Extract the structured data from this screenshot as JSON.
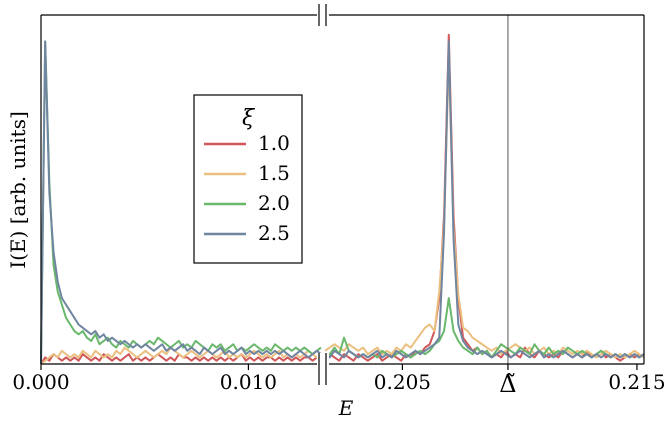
{
  "chart_data": {
    "type": "line",
    "xlabel": "E",
    "ylabel": "I(E) [arb. units]",
    "broken_x_axis": true,
    "panels": [
      {
        "xlim": [
          0.0,
          0.0135
        ],
        "ticks": [
          0.0,
          0.01
        ],
        "tick_labels": [
          "0.000",
          "0.010"
        ]
      },
      {
        "xlim": [
          0.2017,
          0.2153
        ],
        "ticks": [
          0.205,
          0.215
        ],
        "tick_labels": [
          "0.205",
          "0.215"
        ],
        "special_tick": {
          "value": 0.2095,
          "label": "Δ̃"
        }
      }
    ],
    "ylim": [
      0,
      1.06
    ],
    "grid": false,
    "legend": {
      "title": "ξ",
      "position": "upper-middle-left"
    },
    "series": [
      {
        "name": "1.0",
        "color": "#d0585a",
        "left": [
          0.0,
          0.02,
          0.01,
          0.03,
          0.02,
          0.01,
          0.02,
          0.01,
          0.02,
          0.01,
          0.03,
          0.02,
          0.01,
          0.02,
          0.01,
          0.03,
          0.02,
          0.01,
          0.02,
          0.01,
          0.02,
          0.03,
          0.01,
          0.02,
          0.01,
          0.02,
          0.01,
          0.02,
          0.03,
          0.02,
          0.01,
          0.02,
          0.01,
          0.03,
          0.02,
          0.02,
          0.01,
          0.02,
          0.01,
          0.02,
          0.01,
          0.02,
          0.01,
          0.02,
          0.01,
          0.02,
          0.01,
          0.02,
          0.03,
          0.01,
          0.02,
          0.01,
          0.02,
          0.01,
          0.02,
          0.02,
          0.01,
          0.02,
          0.01,
          0.02,
          0.01,
          0.02,
          0.01,
          0.02,
          0.02,
          0.01,
          0.02,
          0.01
        ],
        "right": [
          0.02,
          0.03,
          0.02,
          0.01,
          0.03,
          0.02,
          0.01,
          0.03,
          0.02,
          0.01,
          0.02,
          0.03,
          0.01,
          0.02,
          0.03,
          0.02,
          0.01,
          0.03,
          0.02,
          0.04,
          0.03,
          0.05,
          0.06,
          0.1,
          0.2,
          0.45,
          1.0,
          0.45,
          0.2,
          0.08,
          0.06,
          0.04,
          0.05,
          0.03,
          0.04,
          0.02,
          0.03,
          0.02,
          0.04,
          0.02,
          0.03,
          0.02,
          0.05,
          0.03,
          0.02,
          0.04,
          0.03,
          0.02,
          0.03,
          0.02,
          0.04,
          0.03,
          0.02,
          0.03,
          0.02,
          0.04,
          0.02,
          0.03,
          0.04,
          0.02,
          0.03,
          0.02,
          0.01,
          0.02,
          0.03,
          0.02,
          0.03,
          0.02
        ]
      },
      {
        "name": "1.5",
        "color": "#ebbf80",
        "left": [
          0.0,
          0.01,
          0.02,
          0.03,
          0.02,
          0.04,
          0.03,
          0.02,
          0.03,
          0.02,
          0.04,
          0.03,
          0.02,
          0.04,
          0.03,
          0.02,
          0.03,
          0.02,
          0.04,
          0.03,
          0.05,
          0.04,
          0.03,
          0.02,
          0.03,
          0.04,
          0.03,
          0.02,
          0.03,
          0.04,
          0.03,
          0.05,
          0.04,
          0.03,
          0.02,
          0.03,
          0.04,
          0.03,
          0.02,
          0.03,
          0.04,
          0.03,
          0.02,
          0.03,
          0.04,
          0.02,
          0.03,
          0.02,
          0.03,
          0.02,
          0.03,
          0.04,
          0.03,
          0.02,
          0.03,
          0.02,
          0.03,
          0.04,
          0.02,
          0.03,
          0.02,
          0.03,
          0.02,
          0.03,
          0.04,
          0.03,
          0.02,
          0.03
        ],
        "right": [
          0.04,
          0.05,
          0.06,
          0.05,
          0.04,
          0.06,
          0.05,
          0.04,
          0.05,
          0.03,
          0.04,
          0.05,
          0.03,
          0.04,
          0.03,
          0.05,
          0.04,
          0.06,
          0.05,
          0.07,
          0.09,
          0.11,
          0.12,
          0.1,
          0.22,
          0.42,
          0.93,
          0.41,
          0.21,
          0.11,
          0.1,
          0.08,
          0.07,
          0.06,
          0.05,
          0.04,
          0.05,
          0.03,
          0.04,
          0.05,
          0.06,
          0.05,
          0.04,
          0.05,
          0.03,
          0.04,
          0.05,
          0.03,
          0.04,
          0.03,
          0.05,
          0.04,
          0.03,
          0.04,
          0.03,
          0.04,
          0.03,
          0.02,
          0.03,
          0.04,
          0.03,
          0.02,
          0.03,
          0.02,
          0.03,
          0.04,
          0.03,
          0.02
        ]
      },
      {
        "name": "2.0",
        "color": "#6ab86c",
        "left": [
          0.0,
          0.98,
          0.55,
          0.3,
          0.22,
          0.18,
          0.14,
          0.12,
          0.1,
          0.09,
          0.1,
          0.08,
          0.07,
          0.09,
          0.06,
          0.07,
          0.08,
          0.06,
          0.05,
          0.07,
          0.06,
          0.05,
          0.07,
          0.06,
          0.05,
          0.06,
          0.07,
          0.06,
          0.08,
          0.07,
          0.06,
          0.05,
          0.06,
          0.07,
          0.05,
          0.06,
          0.05,
          0.07,
          0.06,
          0.05,
          0.04,
          0.06,
          0.05,
          0.06,
          0.04,
          0.05,
          0.06,
          0.04,
          0.05,
          0.04,
          0.05,
          0.06,
          0.05,
          0.04,
          0.05,
          0.04,
          0.06,
          0.05,
          0.04,
          0.05,
          0.04,
          0.05,
          0.04,
          0.05,
          0.04,
          0.03,
          0.04,
          0.05
        ],
        "right": [
          0.02,
          0.03,
          0.05,
          0.03,
          0.08,
          0.04,
          0.03,
          0.02,
          0.03,
          0.02,
          0.03,
          0.02,
          0.04,
          0.03,
          0.02,
          0.03,
          0.04,
          0.03,
          0.02,
          0.03,
          0.04,
          0.03,
          0.04,
          0.06,
          0.07,
          0.1,
          0.2,
          0.1,
          0.07,
          0.05,
          0.04,
          0.03,
          0.05,
          0.03,
          0.04,
          0.02,
          0.04,
          0.06,
          0.05,
          0.04,
          0.03,
          0.05,
          0.04,
          0.03,
          0.06,
          0.04,
          0.03,
          0.05,
          0.03,
          0.04,
          0.03,
          0.05,
          0.04,
          0.03,
          0.04,
          0.03,
          0.02,
          0.03,
          0.04,
          0.03,
          0.02,
          0.03,
          0.02,
          0.03,
          0.02,
          0.03,
          0.02,
          0.03
        ]
      },
      {
        "name": "2.5",
        "color": "#6f85a0",
        "left": [
          0.0,
          0.98,
          0.52,
          0.34,
          0.25,
          0.2,
          0.18,
          0.16,
          0.14,
          0.12,
          0.11,
          0.1,
          0.09,
          0.1,
          0.08,
          0.09,
          0.07,
          0.08,
          0.07,
          0.06,
          0.07,
          0.06,
          0.05,
          0.06,
          0.05,
          0.06,
          0.05,
          0.04,
          0.05,
          0.06,
          0.04,
          0.05,
          0.04,
          0.05,
          0.06,
          0.04,
          0.05,
          0.04,
          0.03,
          0.05,
          0.04,
          0.03,
          0.04,
          0.05,
          0.03,
          0.04,
          0.03,
          0.04,
          0.05,
          0.03,
          0.04,
          0.03,
          0.04,
          0.03,
          0.04,
          0.03,
          0.04,
          0.03,
          0.04,
          0.03,
          0.02,
          0.03,
          0.04,
          0.03,
          0.02,
          0.03,
          0.04,
          0.03
        ],
        "right": [
          0.03,
          0.02,
          0.04,
          0.03,
          0.02,
          0.04,
          0.03,
          0.02,
          0.03,
          0.02,
          0.03,
          0.04,
          0.02,
          0.03,
          0.02,
          0.04,
          0.03,
          0.02,
          0.03,
          0.04,
          0.03,
          0.04,
          0.05,
          0.06,
          0.08,
          0.4,
          0.98,
          0.38,
          0.12,
          0.07,
          0.05,
          0.04,
          0.03,
          0.04,
          0.03,
          0.02,
          0.03,
          0.04,
          0.03,
          0.02,
          0.03,
          0.04,
          0.03,
          0.02,
          0.03,
          0.04,
          0.02,
          0.03,
          0.02,
          0.03,
          0.04,
          0.03,
          0.02,
          0.03,
          0.02,
          0.03,
          0.02,
          0.03,
          0.02,
          0.03,
          0.02,
          0.03,
          0.02,
          0.03,
          0.02,
          0.03,
          0.02,
          0.03
        ]
      }
    ]
  }
}
